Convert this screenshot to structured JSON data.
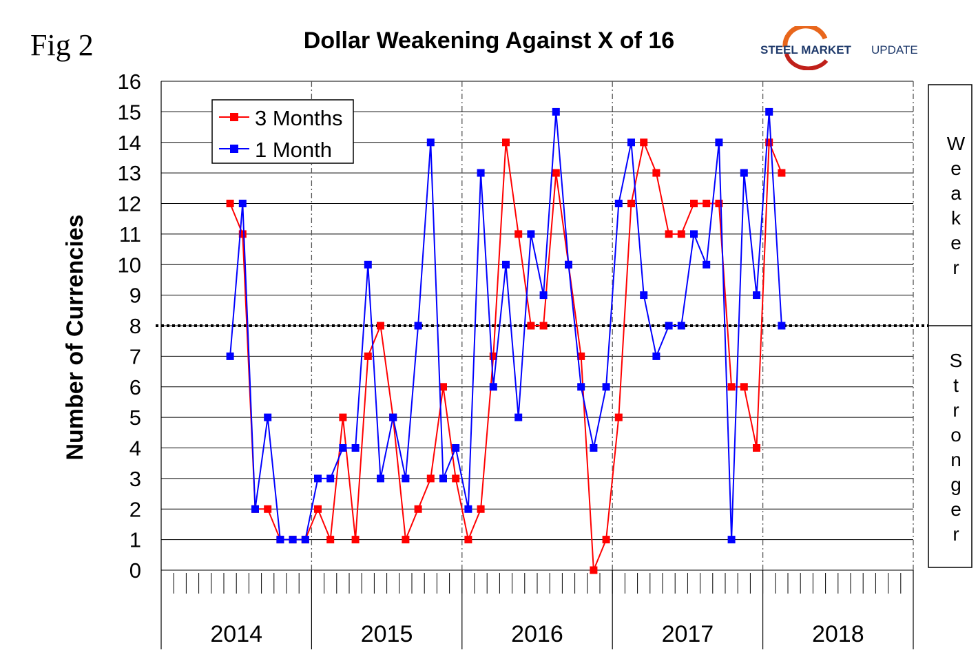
{
  "figure": {
    "label": "Fig 2"
  },
  "logo": {
    "brand_bold": "STEEL MARKET",
    "brand_light": "UPDATE",
    "colors": {
      "navy": "#1f3a6b",
      "orange": "#e8661c",
      "red": "#c0201a"
    }
  },
  "chart_data": {
    "type": "line",
    "title": "Dollar Weakening Against X of 16",
    "ylabel": "Number of Currencies",
    "xlabel": "",
    "ylim": [
      0,
      16
    ],
    "yticks": [
      0,
      1,
      2,
      3,
      4,
      5,
      6,
      7,
      8,
      9,
      10,
      11,
      12,
      13,
      14,
      15,
      16
    ],
    "year_labels": [
      "2014",
      "2015",
      "2016",
      "2017",
      "2018"
    ],
    "months_per_year": 12,
    "reference_line": {
      "value": 8,
      "style": "dotted"
    },
    "side_labels": {
      "upper": "Weaker",
      "lower": "Stronger"
    },
    "series": [
      {
        "name": "3 Months",
        "color": "#ff0000",
        "start_index": 5,
        "values": [
          12,
          11,
          2,
          2,
          1,
          1,
          1,
          2,
          1,
          5,
          1,
          7,
          8,
          5,
          1,
          2,
          3,
          6,
          3,
          1,
          2,
          7,
          14,
          11,
          8,
          8,
          13,
          10,
          7,
          0,
          1,
          5,
          12,
          14,
          13,
          11,
          11,
          12,
          12,
          12,
          6,
          6,
          4,
          14,
          13
        ]
      },
      {
        "name": "1 Month",
        "color": "#0000ff",
        "start_index": 5,
        "values": [
          7,
          12,
          2,
          5,
          1,
          1,
          1,
          3,
          3,
          4,
          4,
          10,
          3,
          5,
          3,
          8,
          14,
          3,
          4,
          2,
          13,
          6,
          10,
          5,
          11,
          9,
          15,
          10,
          6,
          4,
          6,
          12,
          14,
          9,
          7,
          8,
          8,
          11,
          10,
          14,
          1,
          13,
          9,
          15,
          8
        ]
      }
    ]
  }
}
